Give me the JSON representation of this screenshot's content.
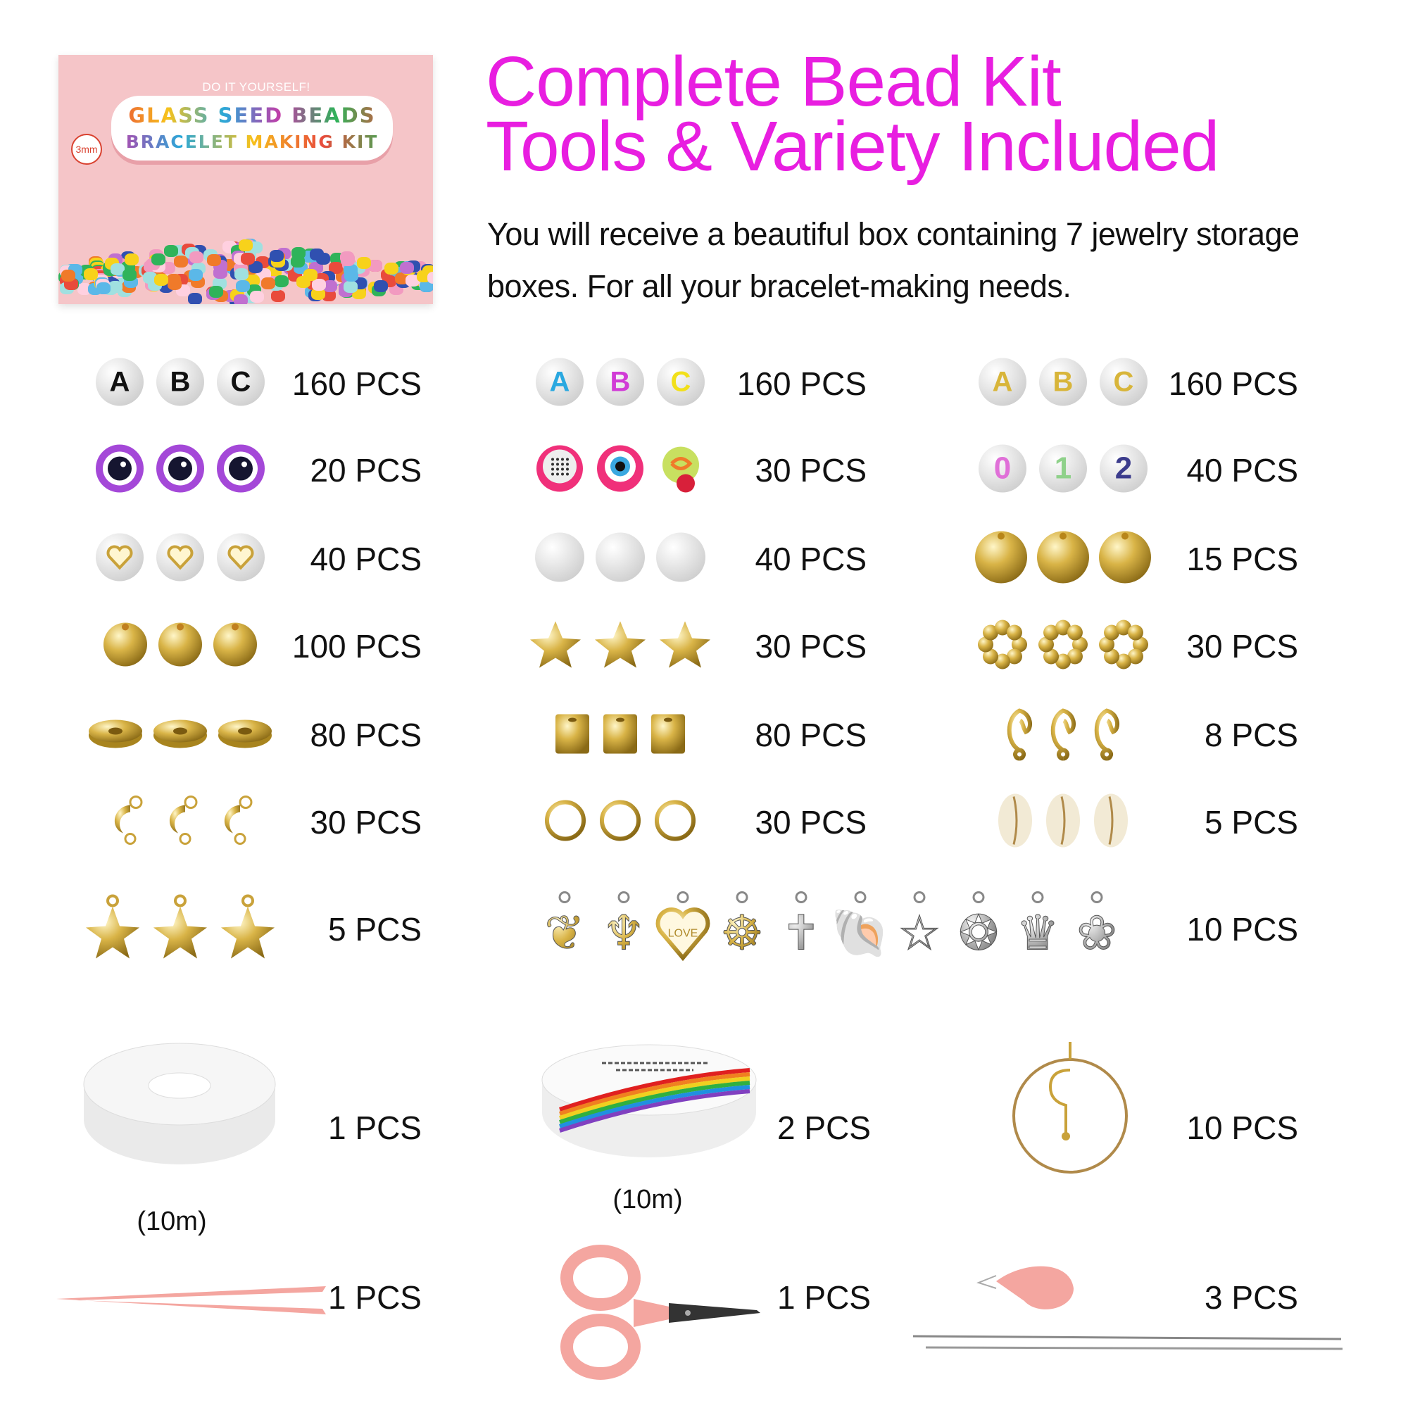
{
  "product_box": {
    "tagline": "DO IT YOURSELF!",
    "title_line1": "GLASS SEED BEADS",
    "title_line2": "BRACELET MAKING KIT",
    "size_badge": "3mm"
  },
  "header": {
    "title_line1": "Complete Bead Kit",
    "title_line2": "Tools & Variety Included",
    "description": "You will receive a beautiful box containing 7 jewelry storage boxes. For all your bracelet-making needs."
  },
  "colors": {
    "title": "#e81ee0",
    "gold": "#d4b24a",
    "pink_tool": "#f4a6a0"
  },
  "grid": [
    [
      {
        "qty": "160 PCS",
        "icon": "letter-bead",
        "letters": [
          "A",
          "B",
          "C"
        ],
        "letter_colors": [
          "#111",
          "#111",
          "#111"
        ]
      },
      {
        "qty": "160 PCS",
        "icon": "letter-bead",
        "letters": [
          "A",
          "B",
          "C"
        ],
        "letter_colors": [
          "#2aa8e0",
          "#d13bd6",
          "#f2e01a"
        ]
      },
      {
        "qty": "160 PCS",
        "icon": "letter-bead",
        "letters": [
          "A",
          "B",
          "C"
        ],
        "letter_colors": [
          "#d8b53a",
          "#d8b53a",
          "#d8b53a"
        ]
      }
    ],
    [
      {
        "qty": "20 PCS",
        "icon": "evil-eye-bead"
      },
      {
        "qty": "30 PCS",
        "icon": "polymer-clay-fruit-bead"
      },
      {
        "qty": "40 PCS",
        "icon": "number-bead",
        "letters": [
          "0",
          "1",
          "2"
        ],
        "letter_colors": [
          "#e070d8",
          "#8fd18a",
          "#3c3c8c"
        ]
      }
    ],
    [
      {
        "qty": "40 PCS",
        "icon": "heart-bead"
      },
      {
        "qty": "40 PCS",
        "icon": "pearl-bead"
      },
      {
        "qty": "15 PCS",
        "icon": "large-gold-bead"
      }
    ],
    [
      {
        "qty": "100 PCS",
        "icon": "gold-bead"
      },
      {
        "qty": "30 PCS",
        "icon": "gold-star-bead"
      },
      {
        "qty": "30 PCS",
        "icon": "gold-flower-spacer"
      }
    ],
    [
      {
        "qty": "80 PCS",
        "icon": "gold-disc-spacer"
      },
      {
        "qty": "80 PCS",
        "icon": "gold-cube-bead"
      },
      {
        "qty": "8 PCS",
        "icon": "lobster-clasp"
      }
    ],
    [
      {
        "qty": "30 PCS",
        "icon": "crimp-bead-cover"
      },
      {
        "qty": "30 PCS",
        "icon": "jump-ring"
      },
      {
        "qty": "5 PCS",
        "icon": "cowrie-shell"
      }
    ]
  ],
  "charms_row": {
    "left": {
      "qty": "5 PCS",
      "icon": "gold-starfish-charm"
    },
    "right": {
      "qty": "10 PCS",
      "charms": [
        "leaf-charm",
        "cupid-charm",
        "love-heart-charm",
        "ship-wheel-charm",
        "cross-charm",
        "shell-charm",
        "star-charm",
        "turtle-charm",
        "crown-charm",
        "butterfly-charm"
      ],
      "charm_labels": {
        "love": "LOVE"
      }
    }
  },
  "tools": [
    {
      "name": "elastic-cord-spool",
      "qty": "1 PCS",
      "length": "(10m)"
    },
    {
      "name": "rainbow-crystal-string-spool",
      "qty": "2 PCS",
      "length": "(10m)"
    },
    {
      "name": "earring-hoop-hook",
      "qty": "10 PCS"
    },
    {
      "name": "tweezers",
      "qty": "1 PCS"
    },
    {
      "name": "scissors",
      "qty": "1 PCS"
    },
    {
      "name": "needle-threader-and-needles",
      "qty": "3 PCS"
    }
  ]
}
